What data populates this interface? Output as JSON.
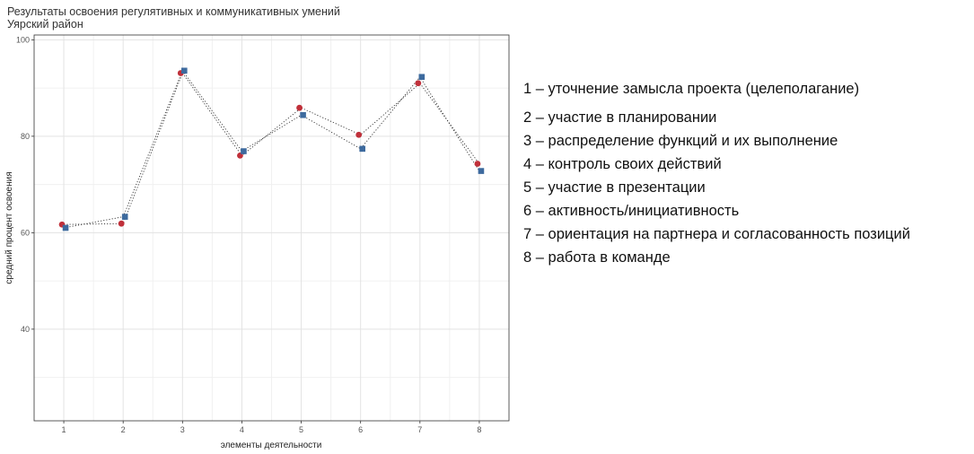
{
  "chart_data": {
    "type": "scatter",
    "title": "Результаты освоения регулятивных и коммуникативных умений",
    "subtitle": "Уярский район",
    "xlabel": "элементы деятельности",
    "ylabel": "средний процент освоения",
    "x_ticks": [
      "1",
      "2",
      "3",
      "4",
      "5",
      "6",
      "7",
      "8"
    ],
    "y_ticks": [
      "40",
      "60",
      "80",
      "100"
    ],
    "y_tick_values": [
      40,
      60,
      80,
      100
    ],
    "ylim": [
      21,
      101
    ],
    "grid": true,
    "series": [
      {
        "marker": "circle",
        "color": "#c0303a",
        "x": [
          1,
          2,
          3,
          4,
          5,
          6,
          7,
          8
        ],
        "values": [
          61.7,
          61.9,
          93.1,
          76.0,
          85.9,
          80.3,
          91.0,
          74.3
        ]
      },
      {
        "marker": "square",
        "color": "#3d6a9e",
        "x": [
          1,
          2,
          3,
          4,
          5,
          6,
          7,
          8
        ],
        "values": [
          61.0,
          63.3,
          93.6,
          76.9,
          84.4,
          77.4,
          92.3,
          72.8
        ]
      }
    ]
  },
  "legend": {
    "items": [
      "1 – уточнение замысла проекта (целеполагание)",
      "2 – участие в планировании",
      "3 – распределение функций и их выполнение",
      "4 – контроль своих действий",
      "5 – участие в презентации",
      "6 – активность/инициативность",
      "7 – ориентация на партнера и согласованность позиций",
      "8 – работа в команде"
    ]
  }
}
